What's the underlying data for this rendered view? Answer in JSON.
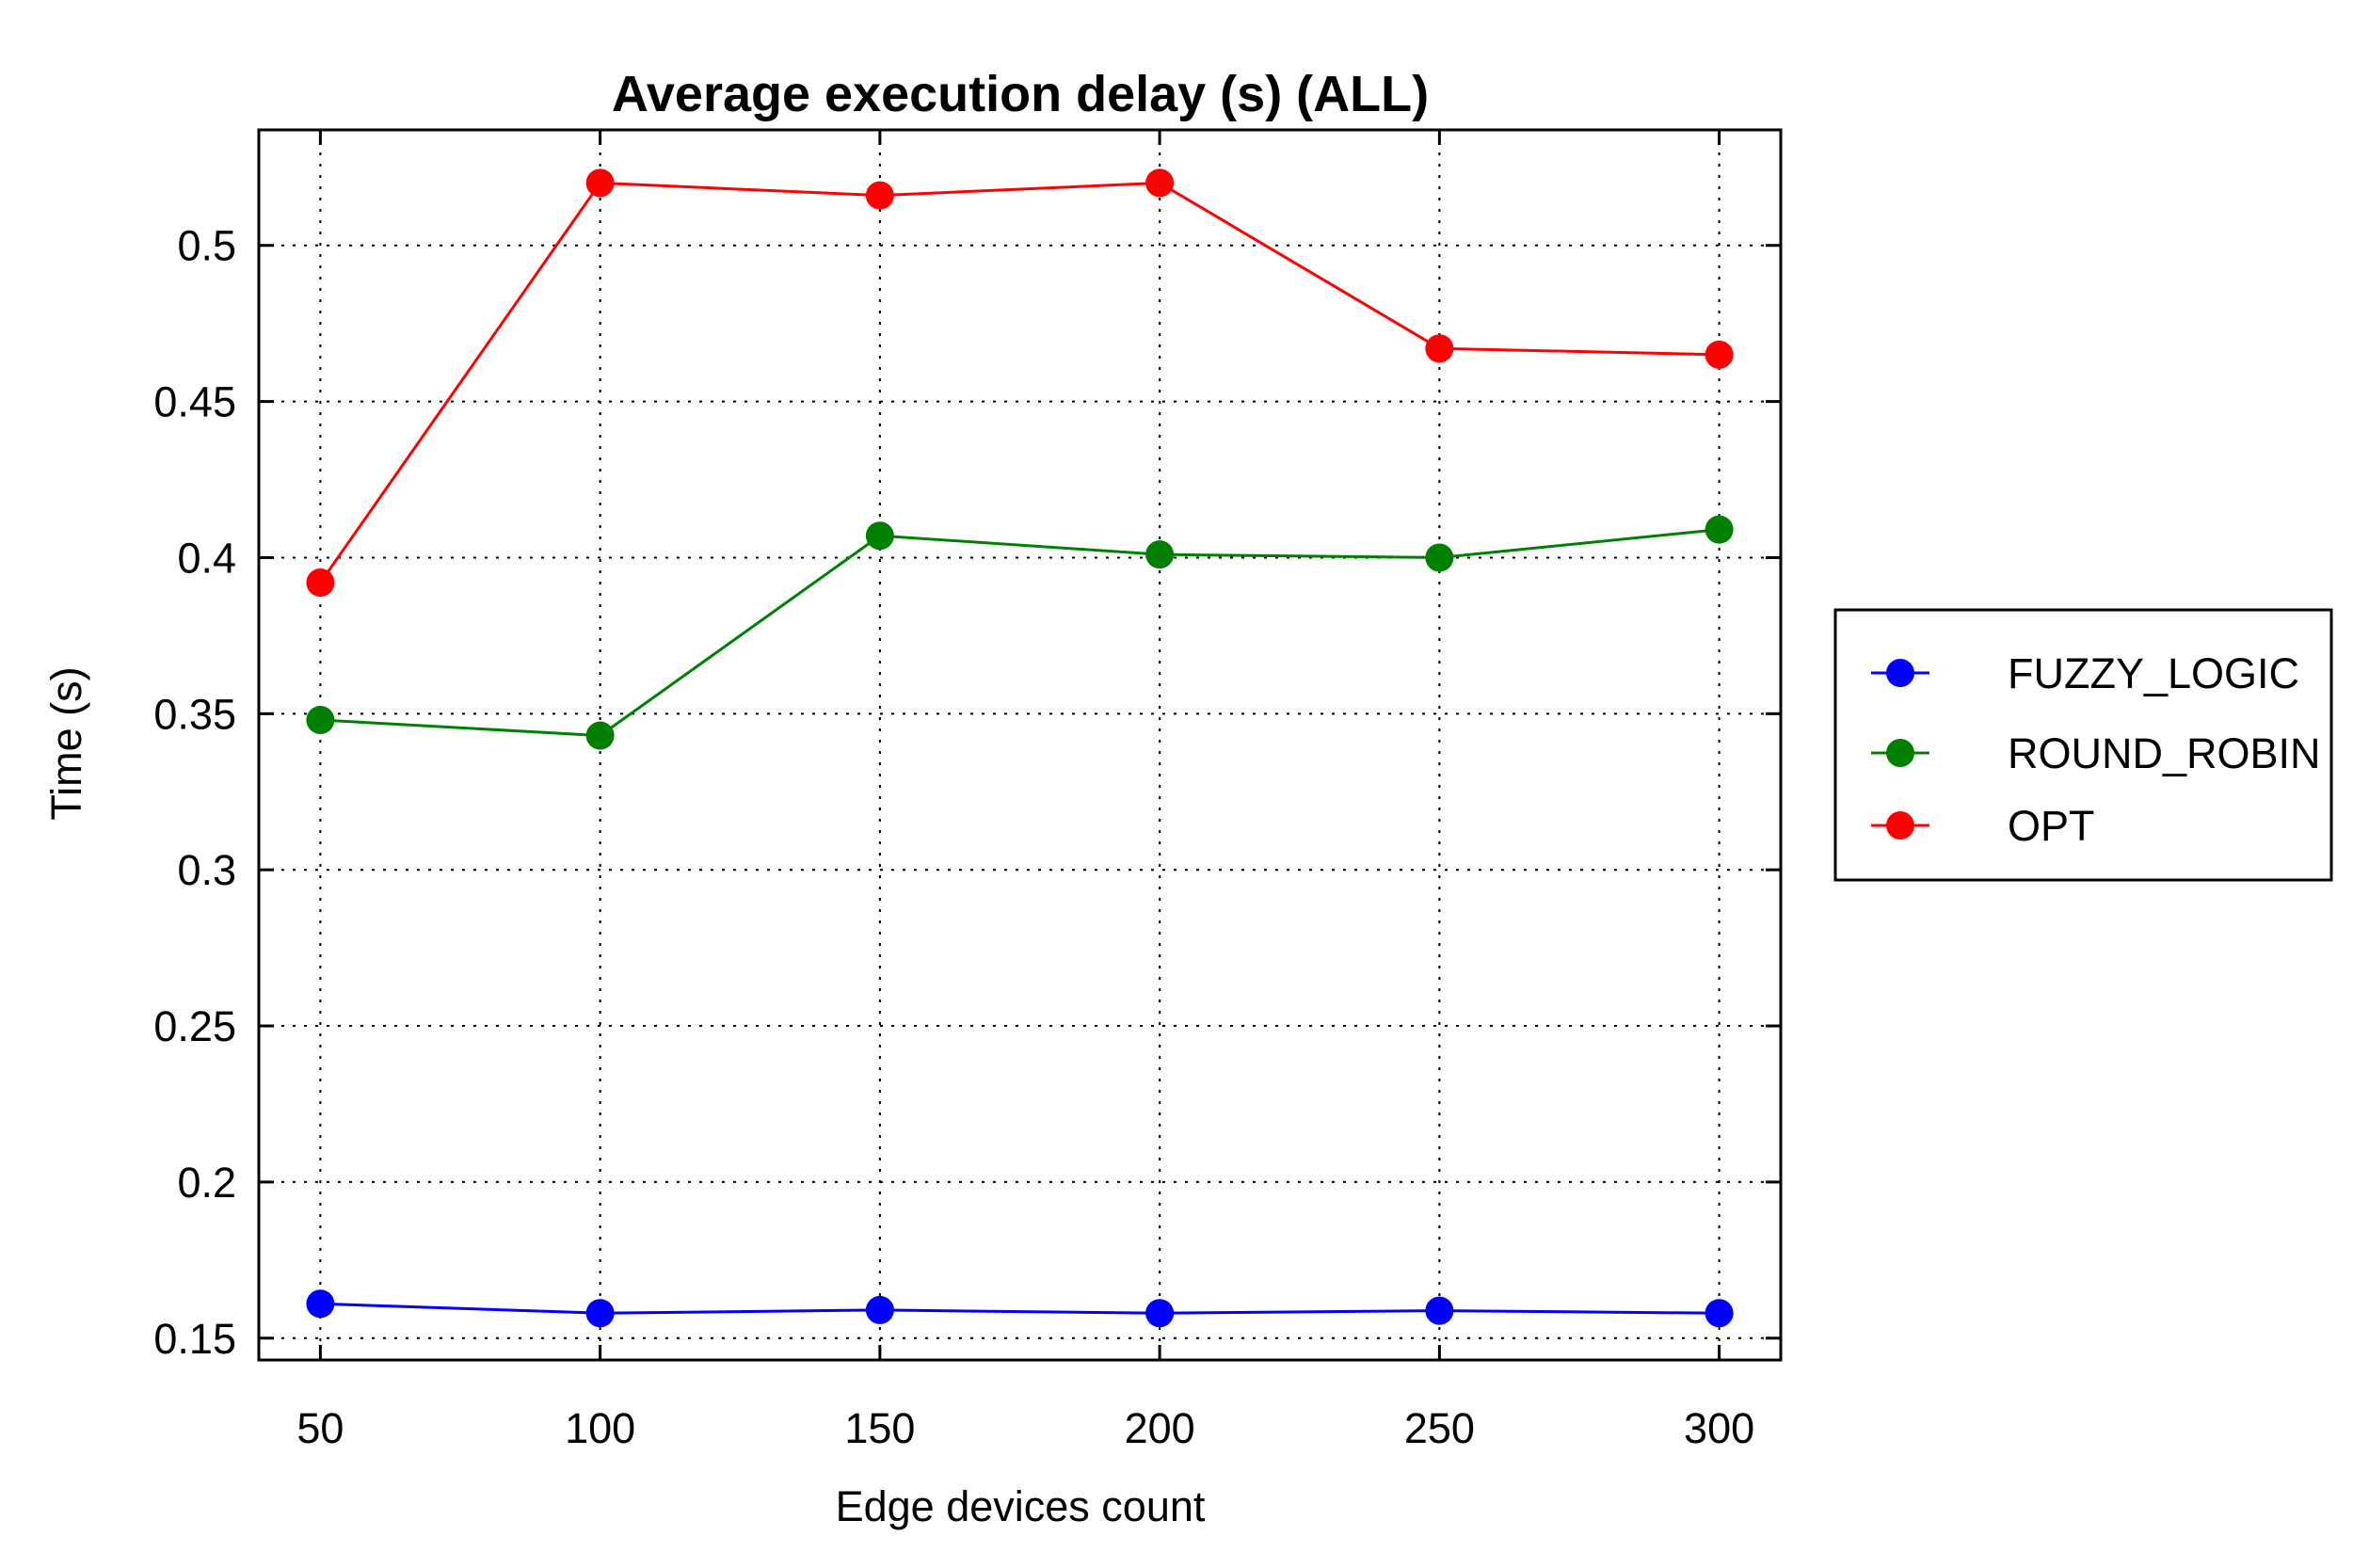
{
  "chart_data": {
    "type": "line",
    "title": "Average execution delay (s) (ALL)",
    "xlabel": "Edge devices count",
    "ylabel": "Time (s)",
    "x": [
      50,
      100,
      150,
      200,
      250,
      300
    ],
    "x_ticks": [
      "50",
      "100",
      "150",
      "200",
      "250",
      "300"
    ],
    "y_ticks": [
      "0.15",
      "0.2",
      "0.25",
      "0.3",
      "0.35",
      "0.4",
      "0.45",
      "0.5"
    ],
    "y_tick_values": [
      0.15,
      0.2,
      0.25,
      0.3,
      0.35,
      0.4,
      0.45,
      0.5
    ],
    "xlim": [
      39,
      311
    ],
    "ylim": [
      0.143,
      0.537
    ],
    "grid": true,
    "legend_position": "right",
    "series": [
      {
        "name": "FUZZY_LOGIC",
        "color": "#0000ff",
        "values": [
          0.161,
          0.158,
          0.159,
          0.158,
          0.1588,
          0.158
        ]
      },
      {
        "name": " ROUND_ROBIN",
        "color": "#008000",
        "values": [
          0.348,
          0.343,
          0.407,
          0.401,
          0.4,
          0.409
        ]
      },
      {
        "name": "OPT",
        "color": "#ff0000",
        "values": [
          0.392,
          0.52,
          0.516,
          0.52,
          0.467,
          0.465
        ]
      }
    ]
  }
}
